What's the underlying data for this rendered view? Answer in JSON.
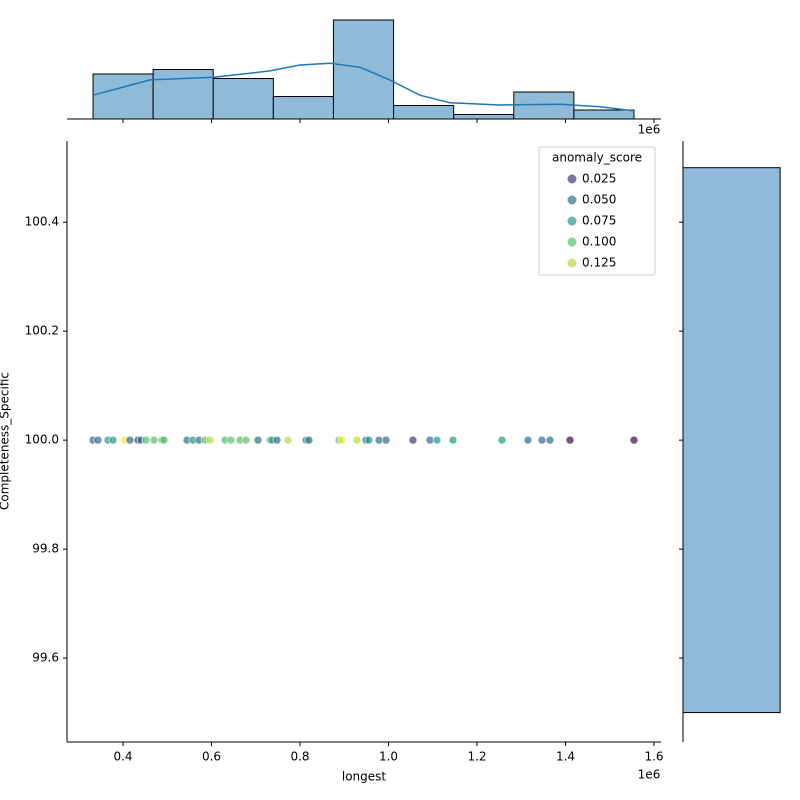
{
  "chart_data": [
    {
      "type": "scatter",
      "xlabel": "longest",
      "ylabel": "Completeness_Specific",
      "x_offset_label": "1e6",
      "xlim": [
        273400,
        1615800
      ],
      "ylim": [
        99.446,
        100.549
      ],
      "xticks": [
        {
          "value": 400000,
          "label": "0.4"
        },
        {
          "value": 600000,
          "label": "0.6"
        },
        {
          "value": 800000,
          "label": "0.8"
        },
        {
          "value": 1000000,
          "label": "1.0"
        },
        {
          "value": 1200000,
          "label": "1.2"
        },
        {
          "value": 1400000,
          "label": "1.4"
        },
        {
          "value": 1600000,
          "label": "1.6"
        }
      ],
      "yticks": [
        99.6,
        99.8,
        {
          "value": 100,
          "label": "100.0"
        },
        100.2,
        100.4
      ],
      "colormap": "viridis",
      "legend": {
        "title": "anomaly_score",
        "loc": "upper right",
        "levels": [
          0.025,
          {
            "value": 0.05,
            "label": "0.050"
          },
          0.075,
          {
            "value": 0.1,
            "label": "0.100"
          },
          0.125
        ]
      },
      "x": [
        332200,
        343500,
        366100,
        377400,
        404500,
        415800,
        433900,
        440600,
        451900,
        470000,
        488100,
        492600,
        544600,
        558100,
        571700,
        585300,
        596600,
        630500,
        644000,
        664400,
        677900,
        705000,
        732200,
        736700,
        748000,
        772800,
        813500,
        820300,
        888100,
        894900,
        928800,
        949100,
        955900,
        978500,
        994300,
        1055300,
        1093700,
        1109600,
        1145700,
        1256500,
        1315200,
        1346800,
        1364900,
        1410100,
        1554800
      ],
      "y": [
        100,
        100,
        100,
        100,
        100,
        100,
        100,
        100,
        100,
        100,
        100,
        100,
        100,
        100,
        100,
        100,
        100,
        100,
        100,
        100,
        100,
        100,
        100,
        100,
        100,
        100,
        100,
        100,
        100,
        100,
        100,
        100,
        100,
        100,
        100,
        100,
        100,
        100,
        100,
        100,
        100,
        100,
        100,
        100,
        100
      ],
      "hue": [
        0.05,
        0.05,
        0.075,
        0.075,
        0.14,
        0.05,
        0.025,
        0.05,
        0.1,
        0.1,
        0.1,
        0.1,
        0.05,
        0.075,
        0.05,
        0.1,
        0.125,
        0.1,
        0.1,
        0.1,
        0.1,
        0.05,
        0.1,
        0.075,
        0.05,
        0.125,
        0.075,
        0.05,
        0.1,
        0.14,
        0.125,
        0.05,
        0.075,
        0.05,
        0.05,
        0.025,
        0.05,
        0.075,
        0.075,
        0.075,
        0.05,
        0.05,
        0.05,
        0,
        0
      ]
    },
    {
      "type": "histogram",
      "color": "#8fbbd9",
      "kde_color": "#1f77b4",
      "ylim": [
        0,
        23
      ],
      "bins": [
        332200,
        468040,
        603880,
        739720,
        875560,
        1011400,
        1147240,
        1283080,
        1418920,
        1554760
      ],
      "counts": [
        10,
        11,
        9,
        5,
        22,
        3,
        1,
        6,
        2
      ],
      "kde_x": [
        332000,
        461000,
        606000,
        732000,
        800000,
        868000,
        936000,
        1003000,
        1071000,
        1139000,
        1252000,
        1388000,
        1478000,
        1555000
      ],
      "kde_y": [
        5.3,
        8.7,
        9.3,
        10.7,
        12,
        12.4,
        11.5,
        8.7,
        5.3,
        3.6,
        3.1,
        3.3,
        2.7,
        1.8
      ]
    },
    {
      "type": "histogram",
      "orientation": "horizontal",
      "color": "#8fbbd9",
      "xlim": [
        0,
        76
      ],
      "bins": [
        99.5,
        100.5
      ],
      "counts": [
        69
      ]
    }
  ]
}
